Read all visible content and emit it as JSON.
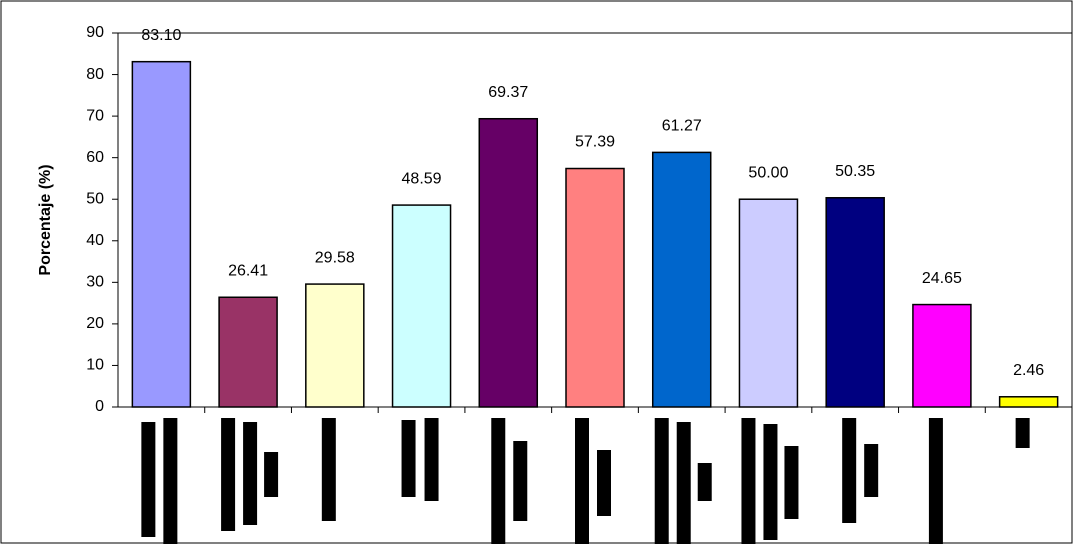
{
  "chart_data": {
    "type": "bar",
    "y_label": "Porcentaje (%)",
    "categories": [
      null,
      null,
      null,
      null,
      null,
      null,
      null,
      null,
      null,
      null,
      null
    ],
    "values": [
      83.1,
      26.41,
      29.58,
      48.59,
      69.37,
      57.39,
      61.27,
      50,
      50.35,
      24.65,
      2.46
    ],
    "value_labels": [
      "83.10",
      "26.41",
      "29.58",
      "48.59",
      "69.37",
      "57.39",
      "61.27",
      "50.00",
      "50.35",
      "24.65",
      "2.46"
    ],
    "colors": [
      "#9999ff",
      "#993366",
      "#ffffcc",
      "#ccffff",
      "#660066",
      "#ff8080",
      "#0066cc",
      "#ccccff",
      "#000080",
      "#ff00ff",
      "#ffff00"
    ],
    "ylim": [
      0,
      90
    ],
    "yticks": [
      0,
      10,
      20,
      30,
      40,
      50,
      60,
      70,
      80,
      90
    ],
    "grid": false
  }
}
